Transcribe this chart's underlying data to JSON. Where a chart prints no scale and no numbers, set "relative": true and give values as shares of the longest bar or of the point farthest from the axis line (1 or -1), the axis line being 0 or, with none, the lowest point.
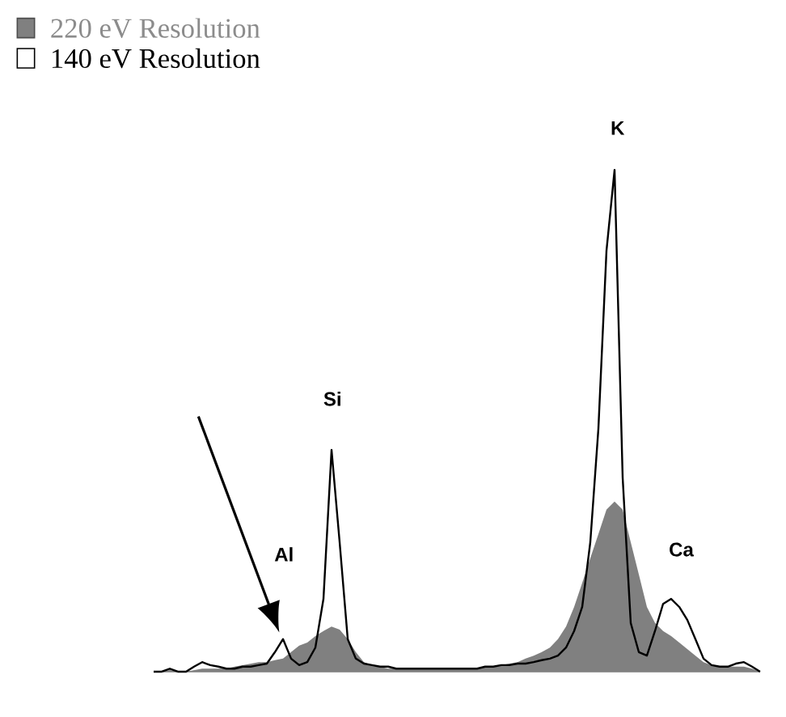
{
  "chart_data": {
    "type": "area",
    "relative": true,
    "legend": "top left",
    "categories": [
      null,
      null,
      null,
      null,
      null,
      null,
      null,
      null,
      null,
      null,
      null,
      null,
      null,
      null,
      null,
      null,
      null,
      null,
      null,
      null,
      null,
      null,
      null,
      null,
      null,
      null,
      null,
      null,
      null,
      null,
      null,
      null,
      null,
      null,
      null,
      null,
      null,
      null,
      null,
      null,
      null,
      null,
      null,
      null,
      null,
      null,
      null,
      null,
      null,
      null,
      null,
      null,
      null,
      null,
      null,
      null,
      null,
      null,
      null,
      null,
      null,
      null,
      null,
      null,
      null,
      null,
      null,
      null,
      null,
      null,
      null,
      null,
      null,
      null,
      null,
      null
    ],
    "series": [
      {
        "name": "220 eV Resolution",
        "color": "#808080",
        "values": [
          0,
          0,
          0.003,
          0,
          0,
          0.003,
          0.006,
          0.006,
          0.006,
          0.006,
          0.01,
          0.013,
          0.016,
          0.019,
          0.019,
          0.023,
          0.026,
          0.039,
          0.052,
          0.058,
          0.071,
          0.081,
          0.09,
          0.084,
          0.065,
          0.039,
          0.019,
          0.013,
          0.01,
          0.006,
          0.006,
          0.006,
          0.006,
          0.006,
          0.006,
          0.006,
          0.006,
          0.006,
          0.006,
          0.006,
          0.006,
          0.01,
          0.01,
          0.013,
          0.016,
          0.019,
          0.026,
          0.032,
          0.039,
          0.048,
          0.065,
          0.09,
          0.129,
          0.177,
          0.226,
          0.274,
          0.323,
          0.339,
          0.323,
          0.258,
          0.194,
          0.129,
          0.097,
          0.081,
          0.071,
          0.058,
          0.045,
          0.032,
          0.019,
          0.013,
          0.01,
          0.01,
          0.01,
          0.01,
          0.006,
          0
        ]
      },
      {
        "name": "140 eV Resolution",
        "type": "line",
        "color": "#000000",
        "values": [
          0,
          0,
          0.006,
          0,
          0,
          0.01,
          0.019,
          0.013,
          0.01,
          0.006,
          0.006,
          0.01,
          0.01,
          0.013,
          0.016,
          0.039,
          0.065,
          0.026,
          0.013,
          0.019,
          0.048,
          0.145,
          0.442,
          0.258,
          0.065,
          0.026,
          0.016,
          0.013,
          0.01,
          0.01,
          0.006,
          0.006,
          0.006,
          0.006,
          0.006,
          0.006,
          0.006,
          0.006,
          0.006,
          0.006,
          0.006,
          0.01,
          0.01,
          0.013,
          0.013,
          0.016,
          0.016,
          0.019,
          0.023,
          0.026,
          0.032,
          0.048,
          0.081,
          0.129,
          0.258,
          0.484,
          0.839,
          1,
          0.387,
          0.097,
          0.039,
          0.032,
          0.081,
          0.135,
          0.145,
          0.129,
          0.103,
          0.065,
          0.026,
          0.013,
          0.01,
          0.01,
          0.016,
          0.019,
          0.01,
          0
        ]
      }
    ],
    "annotations": [
      "Al",
      "Si",
      "K",
      "Ca"
    ]
  }
}
